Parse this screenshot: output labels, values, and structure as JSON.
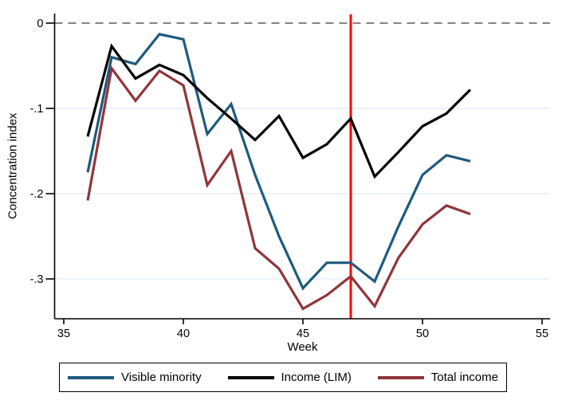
{
  "figure": {
    "y_axis_title": "Concentration index",
    "x_axis_title": "Week"
  },
  "chart_data": {
    "type": "line",
    "title": "",
    "xlabel": "Week",
    "ylabel": "Concentration index",
    "xlim": [
      35,
      55
    ],
    "ylim": [
      -0.347,
      0.01
    ],
    "grid": "horizontal-light",
    "x_ticks": [
      35,
      40,
      45,
      50,
      55
    ],
    "y_ticks": [
      {
        "v": 0,
        "label": "0"
      },
      {
        "v": -0.1,
        "label": "-.1"
      },
      {
        "v": -0.2,
        "label": "-.2"
      },
      {
        "v": -0.3,
        "label": "-.3"
      }
    ],
    "x": [
      36,
      37,
      38,
      39,
      40,
      41,
      42,
      43,
      44,
      45,
      46,
      47,
      48,
      49,
      50,
      51,
      52
    ],
    "series": [
      {
        "name": "Visible minority",
        "color": "#1e5a7d",
        "values": [
          -0.175,
          -0.04,
          -0.048,
          -0.013,
          -0.019,
          -0.13,
          -0.095,
          -0.178,
          -0.25,
          -0.311,
          -0.281,
          -0.281,
          -0.303,
          -0.238,
          -0.178,
          -0.155,
          -0.162
        ]
      },
      {
        "name": "Income (LIM)",
        "color": "#000000",
        "values": [
          -0.133,
          -0.027,
          -0.065,
          -0.049,
          -0.061,
          -0.088,
          -0.112,
          -0.137,
          -0.109,
          -0.158,
          -0.142,
          -0.112,
          -0.18,
          -0.151,
          -0.121,
          -0.106,
          -0.078
        ]
      },
      {
        "name": "Total income",
        "color": "#90353b",
        "values": [
          -0.208,
          -0.053,
          -0.091,
          -0.056,
          -0.073,
          -0.19,
          -0.15,
          -0.264,
          -0.288,
          -0.335,
          -0.319,
          -0.297,
          -0.332,
          -0.275,
          -0.236,
          -0.214,
          -0.224
        ]
      }
    ],
    "reference_lines": [
      {
        "axis": "y",
        "value": 0,
        "style": "dashed",
        "color": "#848484"
      },
      {
        "axis": "x",
        "value": 47,
        "style": "solid",
        "color": "#fe0000"
      }
    ],
    "legend_position": "bottom",
    "gridline_color": "#e4edf3"
  }
}
